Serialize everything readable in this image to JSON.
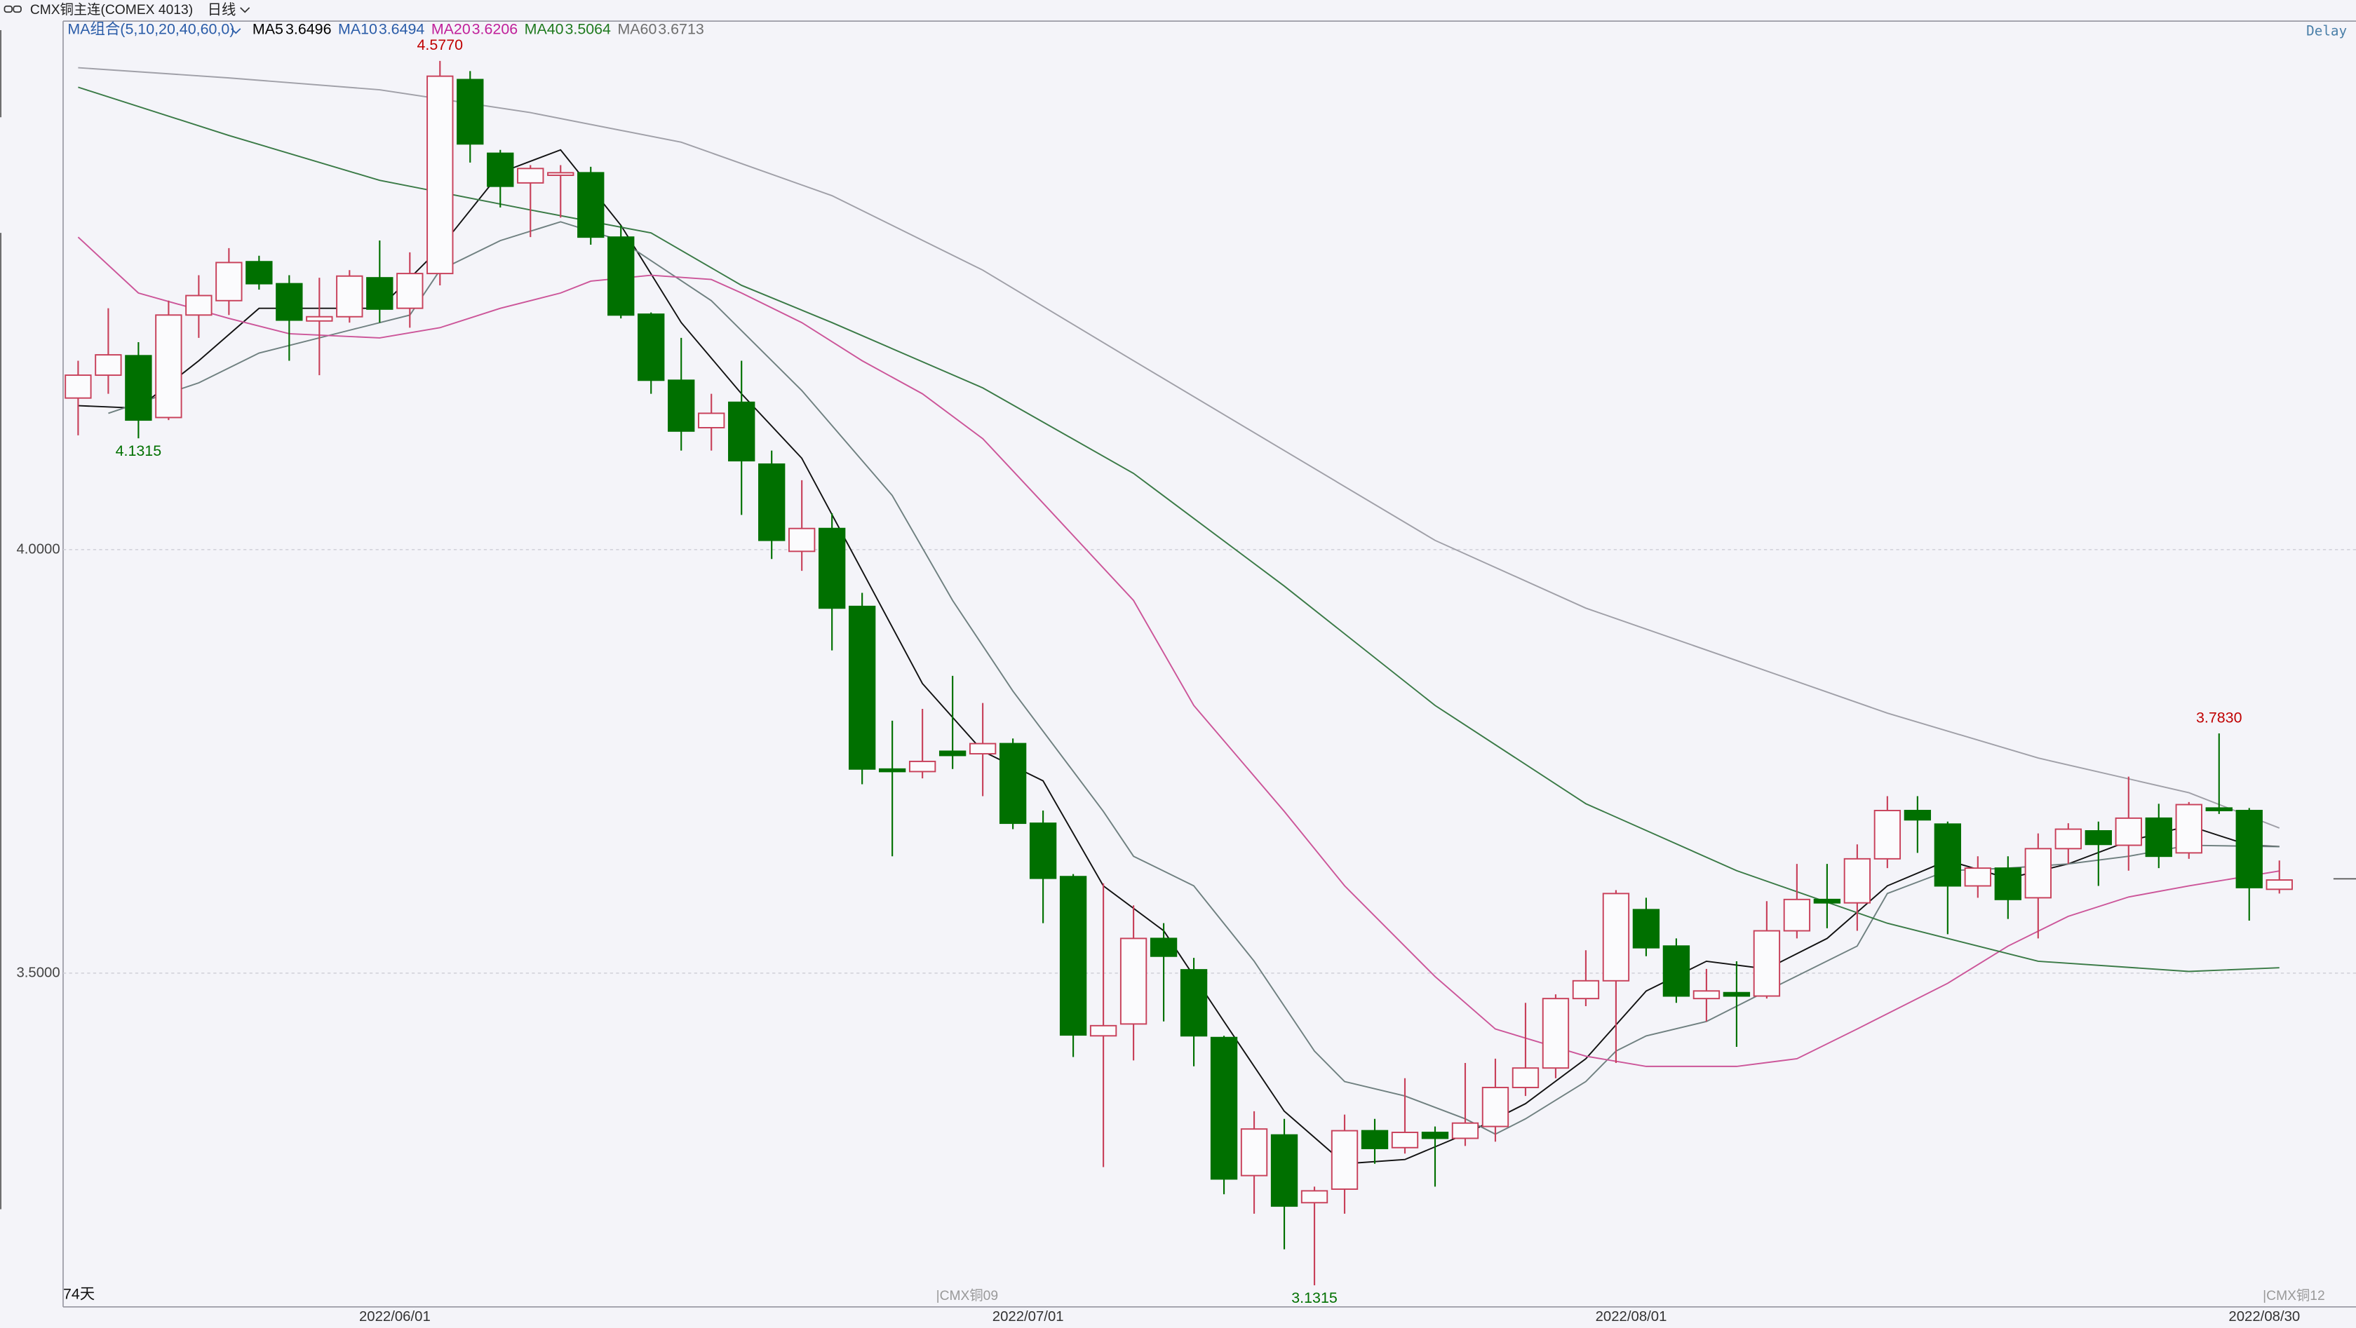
{
  "chart_data": {
    "type": "candlestick",
    "title": "CMX铜主连(COMEX 4013)",
    "period": "日线",
    "delay": "Delay",
    "day_count": "74天",
    "contract_labels": [
      "|CMX铜09",
      "|CMX铜12"
    ],
    "ma_label": "MA组合(5,10,20,40,60,0)",
    "categories": [
      null,
      null,
      null,
      null,
      null,
      null,
      null,
      null,
      null,
      null,
      null,
      "2022/06/01",
      null,
      null,
      null,
      null,
      null,
      null,
      null,
      null,
      null,
      null,
      null,
      null,
      null,
      null,
      null,
      null,
      null,
      null,
      null,
      null,
      "2022/07/01",
      null,
      null,
      null,
      null,
      null,
      null,
      null,
      null,
      null,
      null,
      null,
      null,
      null,
      null,
      null,
      null,
      null,
      null,
      null,
      "2022/08/01",
      null,
      null,
      null,
      null,
      null,
      null,
      null,
      null,
      null,
      null,
      null,
      null,
      null,
      null,
      null,
      null,
      null,
      null,
      null,
      null,
      "2022/08/30"
    ],
    "open": [
      4.179,
      4.206,
      4.229,
      4.156,
      4.277,
      4.294,
      4.34,
      4.314,
      4.27,
      4.275,
      4.321,
      4.285,
      4.326,
      4.555,
      4.468,
      4.433,
      4.442,
      4.445,
      4.369,
      4.278,
      4.2,
      4.144,
      4.174,
      4.101,
      3.998,
      4.025,
      3.933,
      3.741,
      3.738,
      3.762,
      3.759,
      3.771,
      3.677,
      3.614,
      3.426,
      3.44,
      3.541,
      3.504,
      3.424,
      3.261,
      3.309,
      3.229,
      3.245,
      3.314,
      3.294,
      3.312,
      3.305,
      3.319,
      3.365,
      3.388,
      3.47,
      3.491,
      3.575,
      3.532,
      3.47,
      3.477,
      3.473,
      3.55,
      3.587,
      3.583,
      3.635,
      3.692,
      3.676,
      3.603,
      3.624,
      3.589,
      3.647,
      3.668,
      3.651,
      3.683,
      3.642,
      3.695,
      3.692,
      3.599
    ],
    "high": [
      4.223,
      4.285,
      4.245,
      4.294,
      4.324,
      4.356,
      4.347,
      4.324,
      4.321,
      4.33,
      4.365,
      4.351,
      4.577,
      4.565,
      4.472,
      4.454,
      4.454,
      4.452,
      4.383,
      4.28,
      4.25,
      4.184,
      4.223,
      4.117,
      4.082,
      4.043,
      3.949,
      3.798,
      3.812,
      3.851,
      3.819,
      3.777,
      3.692,
      3.617,
      3.606,
      3.58,
      3.559,
      3.518,
      3.426,
      3.337,
      3.328,
      3.248,
      3.333,
      3.328,
      3.376,
      3.319,
      3.394,
      3.399,
      3.465,
      3.475,
      3.527,
      3.598,
      3.589,
      3.541,
      3.505,
      3.514,
      3.585,
      3.629,
      3.629,
      3.652,
      3.709,
      3.709,
      3.679,
      3.638,
      3.638,
      3.665,
      3.677,
      3.679,
      3.732,
      3.7,
      3.702,
      3.783,
      3.695,
      3.633
    ],
    "low": [
      4.135,
      4.184,
      4.1315,
      4.153,
      4.25,
      4.277,
      4.307,
      4.223,
      4.206,
      4.268,
      4.268,
      4.262,
      4.312,
      4.457,
      4.404,
      4.369,
      4.392,
      4.36,
      4.273,
      4.184,
      4.117,
      4.117,
      4.041,
      3.989,
      3.975,
      3.881,
      3.723,
      3.638,
      3.73,
      3.741,
      3.709,
      3.67,
      3.559,
      3.401,
      3.271,
      3.397,
      3.443,
      3.39,
      3.239,
      3.216,
      3.174,
      3.1315,
      3.216,
      3.275,
      3.287,
      3.248,
      3.296,
      3.301,
      3.355,
      3.376,
      3.461,
      3.394,
      3.52,
      3.465,
      3.443,
      3.413,
      3.47,
      3.541,
      3.553,
      3.55,
      3.624,
      3.642,
      3.546,
      3.589,
      3.564,
      3.541,
      3.629,
      3.603,
      3.621,
      3.624,
      3.635,
      3.688,
      3.562,
      3.594
    ],
    "close": [
      4.206,
      4.23,
      4.153,
      4.277,
      4.3,
      4.339,
      4.314,
      4.271,
      4.275,
      4.323,
      4.284,
      4.326,
      4.559,
      4.479,
      4.429,
      4.45,
      4.445,
      4.369,
      4.277,
      4.2,
      4.14,
      4.161,
      4.105,
      4.011,
      4.025,
      3.931,
      3.741,
      3.738,
      3.75,
      3.757,
      3.771,
      3.677,
      3.612,
      3.427,
      3.438,
      3.541,
      3.52,
      3.426,
      3.257,
      3.316,
      3.225,
      3.243,
      3.314,
      3.293,
      3.312,
      3.305,
      3.323,
      3.365,
      3.388,
      3.47,
      3.491,
      3.594,
      3.53,
      3.473,
      3.479,
      3.473,
      3.55,
      3.587,
      3.583,
      3.635,
      3.692,
      3.681,
      3.603,
      3.624,
      3.587,
      3.647,
      3.67,
      3.652,
      3.683,
      3.638,
      3.699,
      3.692,
      3.601,
      3.61
    ],
    "up_color": "#c8405a",
    "down_color": "#007000",
    "series": [
      {
        "name": "MA5",
        "value": 3.6496,
        "color": "#111111",
        "label_color": "#000000",
        "x": [
          0,
          2,
          4,
          6,
          8,
          10,
          12,
          14,
          16,
          18,
          20,
          22,
          24,
          26,
          28,
          30,
          32,
          34,
          36,
          38,
          40,
          42,
          44,
          46,
          48,
          50,
          52,
          54,
          56,
          58,
          60,
          62,
          64,
          66,
          68,
          70,
          72,
          73
        ],
        "values": [
          4.17,
          4.167,
          4.223,
          4.285,
          4.285,
          4.285,
          4.356,
          4.445,
          4.472,
          4.383,
          4.268,
          4.184,
          4.108,
          3.975,
          3.842,
          3.762,
          3.727,
          3.603,
          3.55,
          3.443,
          3.337,
          3.275,
          3.28,
          3.31,
          3.346,
          3.399,
          3.479,
          3.514,
          3.505,
          3.541,
          3.603,
          3.633,
          3.612,
          3.629,
          3.656,
          3.674,
          3.651,
          3.6496
        ]
      },
      {
        "name": "MA10",
        "value": 3.6494,
        "color": "#6f8080",
        "label_color": "#2a5ca8",
        "x": [
          1,
          4,
          6,
          9,
          11,
          12,
          14,
          16,
          18,
          21,
          24,
          27,
          29,
          31,
          34,
          35,
          37,
          39,
          41,
          42,
          44,
          46,
          47,
          48,
          50,
          51,
          52,
          54,
          56,
          59,
          60,
          62,
          64,
          66,
          68,
          70,
          73
        ],
        "values": [
          4.161,
          4.197,
          4.232,
          4.259,
          4.277,
          4.33,
          4.365,
          4.387,
          4.365,
          4.294,
          4.188,
          4.064,
          3.94,
          3.833,
          3.691,
          3.638,
          3.603,
          3.514,
          3.408,
          3.372,
          3.355,
          3.328,
          3.31,
          3.328,
          3.372,
          3.408,
          3.426,
          3.443,
          3.479,
          3.532,
          3.594,
          3.621,
          3.624,
          3.629,
          3.638,
          3.651,
          3.6494
        ]
      },
      {
        "name": "MA20",
        "value": 3.6206,
        "color": "#cc5599",
        "label_color": "#c0209a",
        "x": [
          0,
          2,
          5,
          7,
          10,
          12,
          14,
          16,
          17,
          19,
          21,
          22,
          24,
          26,
          28,
          30,
          32,
          35,
          37,
          40,
          42,
          45,
          47,
          50,
          52,
          55,
          57,
          59,
          62,
          64,
          66,
          68,
          70,
          73
        ],
        "values": [
          4.369,
          4.303,
          4.273,
          4.255,
          4.25,
          4.262,
          4.285,
          4.303,
          4.317,
          4.324,
          4.319,
          4.303,
          4.268,
          4.223,
          4.184,
          4.131,
          4.055,
          3.94,
          3.816,
          3.691,
          3.603,
          3.496,
          3.434,
          3.402,
          3.39,
          3.39,
          3.399,
          3.434,
          3.488,
          3.532,
          3.567,
          3.59,
          3.603,
          3.6206
        ]
      },
      {
        "name": "MA40",
        "value": 3.5064,
        "color": "#3a7a46",
        "label_color": "#1f7a1f",
        "x": [
          0,
          5,
          10,
          15,
          19,
          22,
          25,
          30,
          35,
          40,
          45,
          50,
          55,
          60,
          65,
          70,
          73
        ],
        "values": [
          4.546,
          4.489,
          4.436,
          4.401,
          4.374,
          4.312,
          4.268,
          4.191,
          4.09,
          3.957,
          3.816,
          3.7,
          3.621,
          3.559,
          3.514,
          3.502,
          3.5064
        ]
      },
      {
        "name": "MA60",
        "value": 3.6713,
        "color": "#a0a0a8",
        "label_color": "#6e6e6e",
        "x": [
          0,
          5,
          10,
          15,
          20,
          25,
          30,
          35,
          40,
          45,
          50,
          55,
          60,
          65,
          70,
          73
        ],
        "values": [
          4.569,
          4.557,
          4.543,
          4.516,
          4.481,
          4.418,
          4.33,
          4.223,
          4.117,
          4.011,
          3.931,
          3.869,
          3.807,
          3.754,
          3.713,
          3.6713
        ]
      }
    ],
    "annotations": [
      {
        "label": "4.5770",
        "x": 12,
        "y": 4.577,
        "color": "#c00000"
      },
      {
        "label": "4.1315",
        "x": 2,
        "y": 4.1315,
        "color": "#007000"
      },
      {
        "label": "3.1315",
        "x": 41,
        "y": 3.1315,
        "color": "#007000"
      },
      {
        "label": "3.7830",
        "x": 71,
        "y": 3.783,
        "color": "#c00000"
      }
    ],
    "ylim": [
      3.106,
      4.624
    ],
    "yticks": [
      {
        "value": 4.0,
        "label": "4.0000"
      },
      {
        "value": 3.5,
        "label": "3.5000"
      }
    ],
    "grid": true
  }
}
